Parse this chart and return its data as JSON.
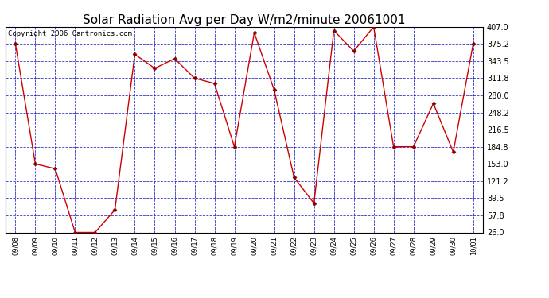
{
  "title": "Solar Radiation Avg per Day W/m2/minute 20061001",
  "copyright": "Copyright 2006 Cantronics.com",
  "x_labels": [
    "09/08",
    "09/09",
    "09/10",
    "09/11",
    "09/12",
    "09/13",
    "09/14",
    "09/15",
    "09/16",
    "09/17",
    "09/18",
    "09/19",
    "09/20",
    "09/21",
    "09/22",
    "09/23",
    "09/24",
    "09/25",
    "09/26",
    "09/27",
    "09/28",
    "09/29",
    "09/30",
    "10/01"
  ],
  "y_values": [
    375.2,
    153.0,
    144.0,
    26.0,
    26.0,
    68.0,
    356.0,
    330.0,
    348.0,
    311.8,
    302.0,
    184.8,
    396.0,
    290.0,
    128.0,
    80.0,
    400.0,
    362.0,
    407.0,
    184.8,
    184.8,
    265.0,
    175.0,
    375.2
  ],
  "y_ticks": [
    26.0,
    57.8,
    89.5,
    121.2,
    153.0,
    184.8,
    216.5,
    248.2,
    280.0,
    311.8,
    343.5,
    375.2,
    407.0
  ],
  "y_min": 26.0,
  "y_max": 407.0,
  "line_color": "#cc0000",
  "marker_color": "#880000",
  "bg_color": "#ffffff",
  "plot_bg_color": "#ffffff",
  "grid_color": "#0000bb",
  "title_fontsize": 11,
  "copyright_fontsize": 6.5,
  "tick_fontsize": 7,
  "xtick_fontsize": 6
}
